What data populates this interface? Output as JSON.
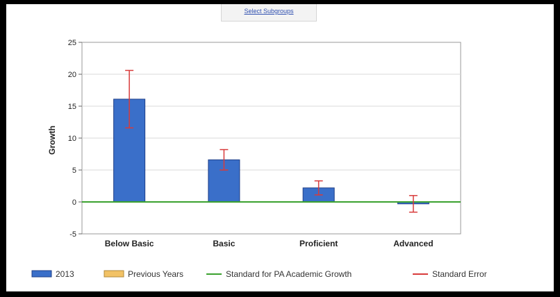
{
  "top_button": {
    "label": "Select Subgroups"
  },
  "colors": {
    "bar_2013": "#3a6fc9",
    "bar_border": "#1f3f88",
    "previous_years": "#f2c265",
    "standard_line": "#3aa12e",
    "error": "#d83b3b"
  },
  "chart_data": {
    "type": "bar",
    "categories": [
      "Below Basic",
      "Basic",
      "Proficient",
      "Advanced"
    ],
    "series": [
      {
        "name": "2013",
        "values": [
          16.1,
          6.6,
          2.2,
          -0.3
        ]
      }
    ],
    "error_bars": {
      "name": "Standard Error",
      "low": [
        11.6,
        5.0,
        1.1,
        -1.6
      ],
      "high": [
        20.6,
        8.2,
        3.3,
        1.0
      ]
    },
    "reference_line": {
      "name": "Standard for PA Academic Growth",
      "value": 0
    },
    "ylabel": "Growth",
    "xlabel": "",
    "ylim": [
      -5,
      25
    ],
    "yticks": [
      -5,
      0,
      5,
      10,
      15,
      20,
      25
    ],
    "grid": true,
    "legend": {
      "position": "bottom",
      "items": [
        "2013",
        "Previous Years",
        "Standard for PA Academic Growth",
        "Standard Error"
      ]
    }
  }
}
